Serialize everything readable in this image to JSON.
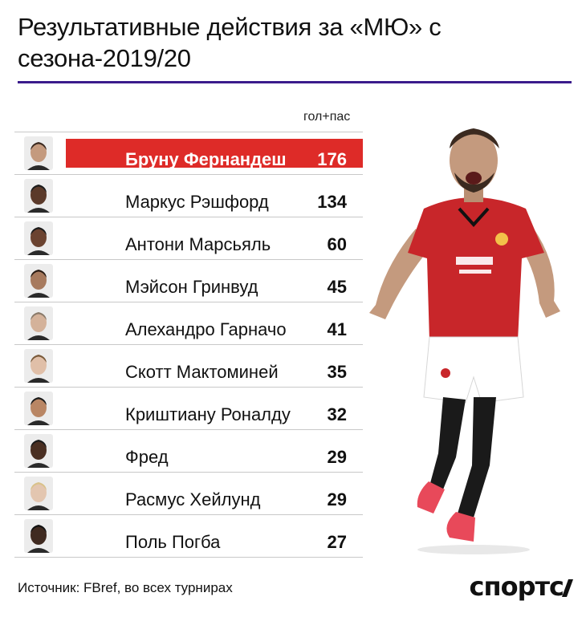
{
  "title": "Результативные действия за «МЮ» с сезона-2019/20",
  "column_header": "гол+пас",
  "source": "Источник: FBref, во всех турнирах",
  "logo": "спортс",
  "colors": {
    "highlight": "#de2b28",
    "title_rule": "#3b1c8c",
    "text": "#111111"
  },
  "chart_data": {
    "type": "table",
    "highlight_index": 0,
    "players": [
      {
        "name": "Бруну Фернандеш",
        "value": 176
      },
      {
        "name": "Маркус Рэшфорд",
        "value": 134
      },
      {
        "name": "Антони Марсьяль",
        "value": 60
      },
      {
        "name": "Мэйсон Гринвуд",
        "value": 45
      },
      {
        "name": "Алехандро Гарначо",
        "value": 41
      },
      {
        "name": "Скотт Мактоминей",
        "value": 35
      },
      {
        "name": "Криштиану Роналду",
        "value": 32
      },
      {
        "name": "Фред",
        "value": 29
      },
      {
        "name": "Расмус Хейлунд",
        "value": 29
      },
      {
        "name": "Поль Погба",
        "value": 27
      }
    ]
  }
}
